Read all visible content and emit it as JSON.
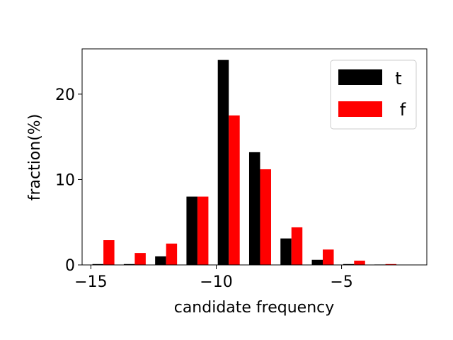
{
  "chart_data": {
    "type": "bar",
    "title": "",
    "xlabel": "candidate frequency",
    "ylabel": "fraction(%)",
    "x": [
      -14.5,
      -13.25,
      -12.0,
      -10.75,
      -9.5,
      -8.25,
      -7.0,
      -5.75,
      -4.5,
      -3.25
    ],
    "xlim": [
      -15.35,
      -1.6
    ],
    "ylim": [
      0,
      25.3
    ],
    "xticks": [
      -15,
      -10,
      -5
    ],
    "xtick_labels": [
      "−15",
      "−10",
      "−5"
    ],
    "yticks": [
      0,
      10,
      20
    ],
    "ytick_labels": [
      "0",
      "10",
      "20"
    ],
    "series": [
      {
        "name": "t",
        "color": "#000000",
        "values": [
          0.1,
          0.1,
          1.0,
          8.0,
          24.0,
          13.2,
          3.1,
          0.6,
          0.1,
          0.05
        ]
      },
      {
        "name": "f",
        "color": "#ff0000",
        "values": [
          2.9,
          1.4,
          2.5,
          8.0,
          17.5,
          11.2,
          4.4,
          1.8,
          0.5,
          0.1
        ]
      }
    ],
    "legend_position": "top-right",
    "grid": false
  }
}
